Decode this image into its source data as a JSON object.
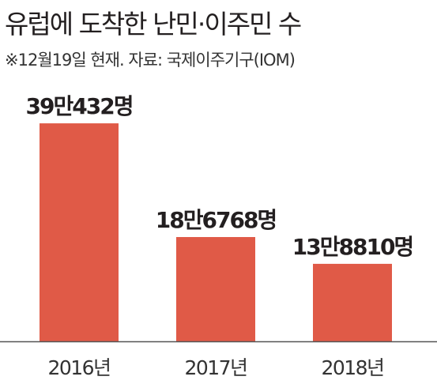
{
  "chart_data": {
    "type": "bar",
    "title": "유럽에 도착한 난민·이주민 수",
    "subtitle": "※12월19일 현재. 자료: 국제이주기구(IOM)",
    "categories": [
      "2016년",
      "2017년",
      "2018년"
    ],
    "values": [
      390432,
      186768,
      138810
    ],
    "value_labels": [
      "39만432명",
      "18만6768명",
      "13만8810명"
    ],
    "ylim": [
      0,
      500000
    ],
    "grid": false,
    "legend": "none",
    "bar_color": "#e05a47",
    "axis_color": "#555555"
  }
}
